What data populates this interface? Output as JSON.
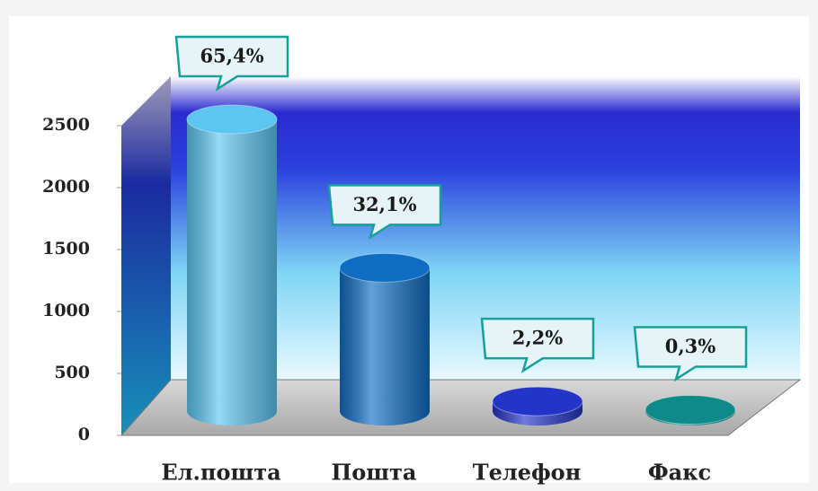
{
  "chart_data": {
    "type": "bar",
    "categories": [
      "Ел.пошта",
      "Пошта",
      "Телефон",
      "Факс"
    ],
    "values": [
      2355,
      1157,
      79,
      11
    ],
    "shares": [
      65.4,
      32.1,
      2.2,
      0.3
    ],
    "share_labels": [
      "65,4%",
      "32,1%",
      "2,2%",
      "0,3%"
    ],
    "colors": [
      "#5cc6f2",
      "#0f6ec4",
      "#2434c8",
      "#0e8a88"
    ],
    "ylim": [
      0,
      2500
    ],
    "yticks": [
      0,
      500,
      1000,
      1500,
      2000,
      2500
    ]
  }
}
